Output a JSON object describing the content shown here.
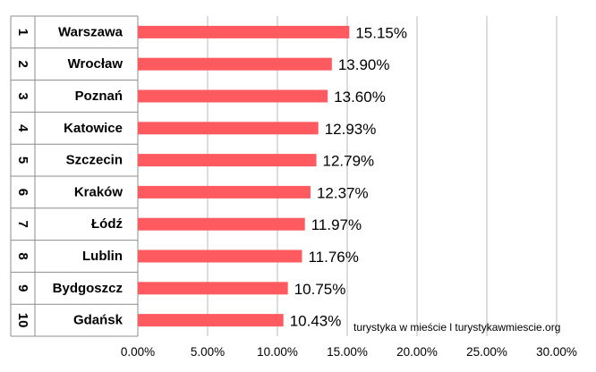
{
  "chart_data": {
    "type": "bar",
    "orientation": "horizontal",
    "categories": [
      "Warszawa",
      "Wrocław",
      "Poznań",
      "Katowice",
      "Szczecin",
      "Kraków",
      "Łódź",
      "Lublin",
      "Bydgoszcz",
      "Gdańsk"
    ],
    "ranks": [
      "1",
      "2",
      "3",
      "4",
      "5",
      "6",
      "7",
      "8",
      "9",
      "10"
    ],
    "values": [
      15.15,
      13.9,
      13.6,
      12.93,
      12.79,
      12.37,
      11.97,
      11.76,
      10.75,
      10.43
    ],
    "value_labels": [
      "15.15%",
      "13.90%",
      "13.60%",
      "12.93%",
      "12.79%",
      "12.37%",
      "11.97%",
      "11.76%",
      "10.75%",
      "10.43%"
    ],
    "x_ticks": [
      0,
      5,
      10,
      15,
      20,
      25,
      30
    ],
    "x_tick_labels": [
      "0.00%",
      "5.00%",
      "10.00%",
      "15.00%",
      "20.00%",
      "25.00%",
      "30.00%"
    ],
    "xlim": [
      0,
      30
    ],
    "grid": true,
    "legend": "none",
    "bar_color": "#ff5a5f",
    "grid_color": "#b8b8b8",
    "title": "",
    "xlabel": "",
    "ylabel": "",
    "watermark": "turystyka w mieście l turystykawmiescie.org"
  }
}
